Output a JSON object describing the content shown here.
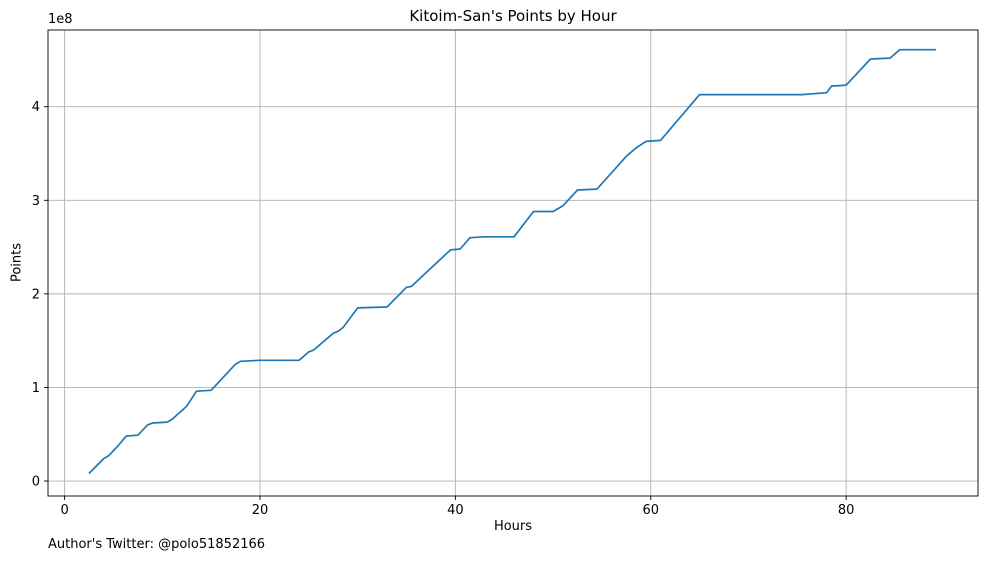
{
  "footer": {
    "credit": "Author's Twitter: @polo51852166"
  },
  "chart_data": {
    "type": "line",
    "title": "Kitoim-San's Points by Hour",
    "xlabel": "Hours",
    "ylabel": "Points",
    "y_offset_label": "1e8",
    "xlim": [
      -1.7,
      93.5
    ],
    "ylim": [
      -0.16,
      4.82
    ],
    "xticks": [
      0,
      20,
      40,
      60,
      80
    ],
    "yticks": [
      0,
      1,
      2,
      3,
      4
    ],
    "grid": true,
    "legend": "none",
    "series": [
      {
        "color": "#1f77b4",
        "x": [
          2.5,
          4,
          4.5,
          5.5,
          6.3,
          7.5,
          8.5,
          9,
          10.5,
          11,
          12.5,
          13.5,
          15,
          17.5,
          18,
          20,
          24,
          25,
          25.5,
          27.5,
          28,
          28.5,
          30,
          33,
          35,
          35.5,
          39.5,
          40.5,
          41.5,
          43,
          46,
          48,
          50,
          51,
          52.5,
          54.5,
          57.5,
          58.5,
          59.5,
          61,
          65,
          75.5,
          78,
          78.5,
          80,
          82.5,
          84.5,
          85.5,
          89.2
        ],
        "y": [
          0.08,
          0.24,
          0.27,
          0.38,
          0.48,
          0.49,
          0.6,
          0.62,
          0.63,
          0.66,
          0.8,
          0.96,
          0.97,
          1.25,
          1.28,
          1.29,
          1.29,
          1.38,
          1.4,
          1.58,
          1.6,
          1.64,
          1.85,
          1.86,
          2.07,
          2.08,
          2.47,
          2.48,
          2.6,
          2.61,
          2.61,
          2.88,
          2.88,
          2.94,
          3.11,
          3.12,
          3.47,
          3.56,
          3.63,
          3.64,
          4.13,
          4.13,
          4.15,
          4.22,
          4.23,
          4.51,
          4.52,
          4.61,
          4.61
        ]
      }
    ]
  }
}
